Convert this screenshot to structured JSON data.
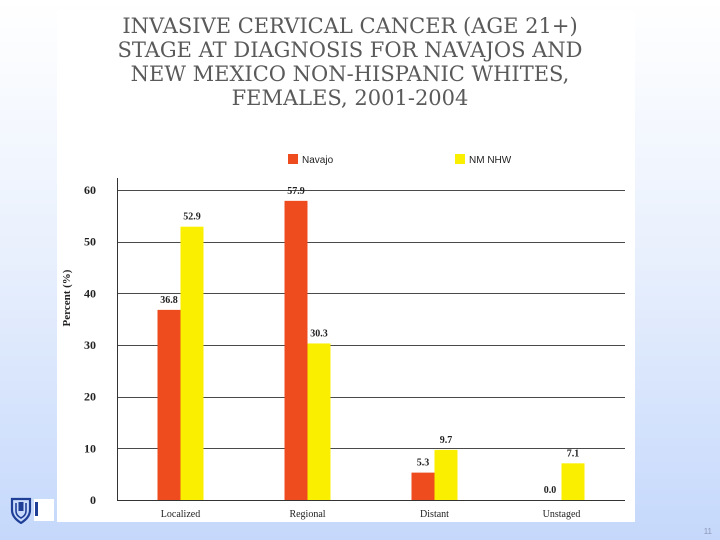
{
  "slide": {
    "title_lines": [
      "INVASIVE CERVICAL CANCER (AGE 21+)",
      "STAGE AT DIAGNOSIS FOR NAVAJOS AND",
      "NEW MEXICO NON-HISPANIC WHITES,",
      "FEMALES, 2001-2004"
    ],
    "page_number": "11",
    "logo_icon": "shield-logo-icon"
  },
  "chart_data": {
    "type": "bar",
    "title": "INVASIVE CERVICAL CANCER (AGE 21+) STAGE AT DIAGNOSIS FOR NAVAJOS AND NEW MEXICO NON-HISPANIC WHITES, FEMALES, 2001-2004",
    "categories": [
      "Localized",
      "Regional",
      "Distant",
      "Unstaged"
    ],
    "series": [
      {
        "name": "Navajo",
        "values": [
          36.8,
          57.9,
          5.3,
          0.0
        ],
        "labels": [
          "36.8",
          "57.9",
          "5.3",
          "0.0"
        ],
        "color": "#ee4b1e"
      },
      {
        "name": "NM NHW",
        "values": [
          52.9,
          30.3,
          9.7,
          7.1
        ],
        "labels": [
          "52.9",
          "30.3",
          "9.7",
          "7.1"
        ],
        "color": "#fbef00"
      }
    ],
    "xlabel": "",
    "ylabel": "Percent (%)",
    "ylim": [
      0,
      60
    ],
    "yticks": [
      0,
      10,
      20,
      30,
      40,
      50,
      60
    ],
    "ytick_labels": [
      "0",
      "10",
      "20",
      "30",
      "40",
      "50",
      "60"
    ],
    "grid": true,
    "legend_position": "top"
  }
}
